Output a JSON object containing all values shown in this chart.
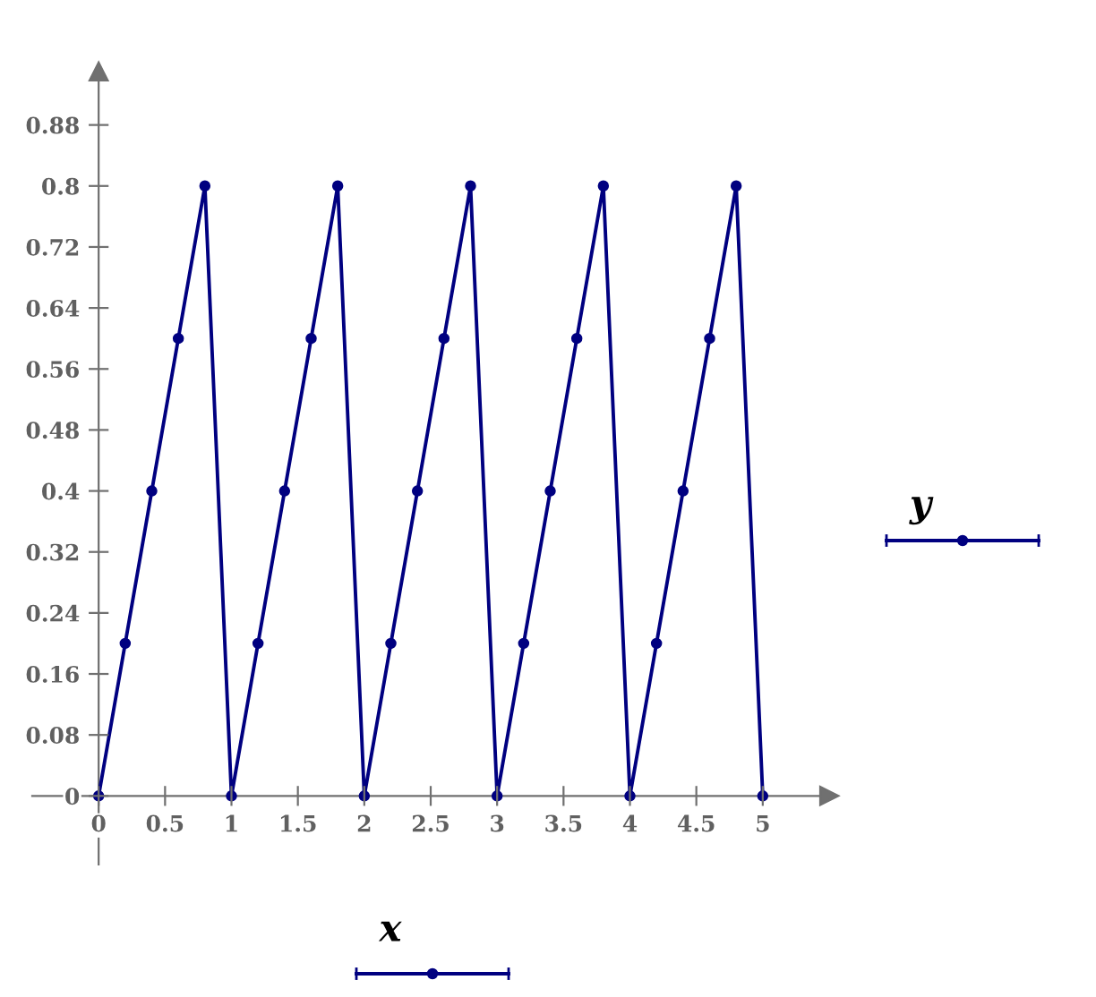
{
  "chart_data": {
    "type": "line",
    "xlabel": "x",
    "ylabel": "y",
    "x": [
      0,
      0.2,
      0.4,
      0.6,
      0.8,
      1,
      1.2,
      1.4,
      1.6,
      1.8,
      2,
      2.2,
      2.4,
      2.6,
      2.8,
      3,
      3.2,
      3.4,
      3.6,
      3.8,
      4,
      4.2,
      4.4,
      4.6,
      4.8,
      5
    ],
    "series": [
      {
        "color": "#000080",
        "values": [
          0,
          0.2,
          0.4,
          0.6,
          0.8,
          0,
          0.2,
          0.4,
          0.6,
          0.8,
          0,
          0.2,
          0.4,
          0.6,
          0.8,
          0,
          0.2,
          0.4,
          0.6,
          0.8,
          0,
          0.2,
          0.4,
          0.6,
          0.8,
          0
        ]
      }
    ],
    "xlim": [
      -0.5,
      5.5
    ],
    "ylim": [
      -0.09,
      0.95
    ],
    "xticks": [
      0,
      0.5,
      1,
      1.5,
      2,
      2.5,
      3,
      3.5,
      4,
      4.5,
      5
    ],
    "yticks": [
      0,
      0.08,
      0.16,
      0.24,
      0.32,
      0.4,
      0.48,
      0.56,
      0.64,
      0.72,
      0.8,
      0.88
    ],
    "marker": "circle",
    "line_style": "solid",
    "grid": false,
    "legend": false
  }
}
